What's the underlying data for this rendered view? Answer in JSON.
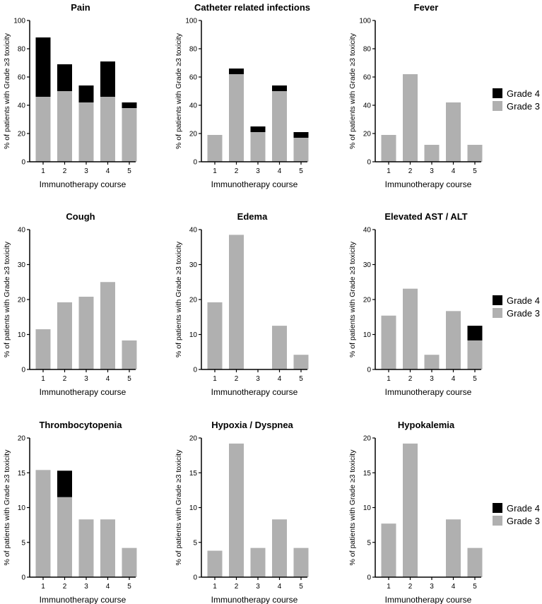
{
  "colors": {
    "grade3": "#b0b0b0",
    "grade4": "#000000",
    "axis": "#000000"
  },
  "legend": {
    "grade4_label": "Grade 4",
    "grade3_label": "Grade 3"
  },
  "chart_data": [
    {
      "type": "bar",
      "title": "Pain",
      "xlabel": "Immunotherapy course",
      "ylabel": "% of patients with Grade ≥3 toxicity",
      "categories": [
        "1",
        "2",
        "3",
        "4",
        "5"
      ],
      "ylim": [
        0,
        100
      ],
      "yticks": [
        0,
        20,
        40,
        60,
        80,
        100
      ],
      "stacked": true,
      "series": [
        {
          "name": "Grade 3",
          "values": [
            46,
            50,
            42,
            46,
            38
          ]
        },
        {
          "name": "Grade 4",
          "values": [
            42,
            19,
            12,
            25,
            4
          ]
        }
      ]
    },
    {
      "type": "bar",
      "title": "Catheter related infections",
      "xlabel": "Immunotherapy course",
      "ylabel": "% of patients with Grade ≥3 toxicity",
      "categories": [
        "1",
        "2",
        "3",
        "4",
        "5"
      ],
      "ylim": [
        0,
        100
      ],
      "yticks": [
        0,
        20,
        40,
        60,
        80,
        100
      ],
      "stacked": true,
      "series": [
        {
          "name": "Grade 3",
          "values": [
            19,
            62,
            21,
            50,
            17
          ]
        },
        {
          "name": "Grade 4",
          "values": [
            0,
            4,
            4,
            4,
            4
          ]
        }
      ]
    },
    {
      "type": "bar",
      "title": "Fever",
      "xlabel": "Immunotherapy course",
      "ylabel": "% of patients with Grade ≥3 toxicity",
      "categories": [
        "1",
        "2",
        "3",
        "4",
        "5"
      ],
      "ylim": [
        0,
        100
      ],
      "yticks": [
        0,
        20,
        40,
        60,
        80,
        100
      ],
      "stacked": true,
      "series": [
        {
          "name": "Grade 3",
          "values": [
            19,
            62,
            12,
            42,
            12
          ]
        },
        {
          "name": "Grade 4",
          "values": [
            0,
            0,
            0,
            0,
            0
          ]
        }
      ]
    },
    {
      "type": "bar",
      "title": "Cough",
      "xlabel": "Immunotherapy course",
      "ylabel": "% of patients with Grade ≥3 toxicity",
      "categories": [
        "1",
        "2",
        "3",
        "4",
        "5"
      ],
      "ylim": [
        0,
        40
      ],
      "yticks": [
        0,
        10,
        20,
        30,
        40
      ],
      "stacked": true,
      "series": [
        {
          "name": "Grade 3",
          "values": [
            11.5,
            19.2,
            20.8,
            25,
            8.3
          ]
        },
        {
          "name": "Grade 4",
          "values": [
            0,
            0,
            0,
            0,
            0
          ]
        }
      ]
    },
    {
      "type": "bar",
      "title": "Edema",
      "xlabel": "Immunotherapy course",
      "ylabel": "% of patients with Grade ≥3 toxicity",
      "categories": [
        "1",
        "2",
        "3",
        "4",
        "5"
      ],
      "ylim": [
        0,
        40
      ],
      "yticks": [
        0,
        10,
        20,
        30,
        40
      ],
      "stacked": true,
      "series": [
        {
          "name": "Grade 3",
          "values": [
            19.2,
            38.5,
            0,
            12.5,
            4.2
          ]
        },
        {
          "name": "Grade 4",
          "values": [
            0,
            0,
            0,
            0,
            0
          ]
        }
      ]
    },
    {
      "type": "bar",
      "title": "Elevated AST / ALT",
      "xlabel": "Immunotherapy course",
      "ylabel": "% of patients with Grade ≥3 toxicity",
      "categories": [
        "1",
        "2",
        "3",
        "4",
        "5"
      ],
      "ylim": [
        0,
        40
      ],
      "yticks": [
        0,
        10,
        20,
        30,
        40
      ],
      "stacked": true,
      "series": [
        {
          "name": "Grade 3",
          "values": [
            15.4,
            23.1,
            4.2,
            16.7,
            8.3
          ]
        },
        {
          "name": "Grade 4",
          "values": [
            0,
            0,
            0,
            0,
            4.2
          ]
        }
      ]
    },
    {
      "type": "bar",
      "title": "Thrombocytopenia",
      "xlabel": "Immunotherapy course",
      "ylabel": "% of patients with Grade ≥3 toxicity",
      "categories": [
        "1",
        "2",
        "3",
        "4",
        "5"
      ],
      "ylim": [
        0,
        20
      ],
      "yticks": [
        0,
        5,
        10,
        15,
        20
      ],
      "stacked": true,
      "series": [
        {
          "name": "Grade 3",
          "values": [
            15.4,
            11.5,
            8.3,
            8.3,
            4.2
          ]
        },
        {
          "name": "Grade 4",
          "values": [
            0,
            3.8,
            0,
            0,
            0
          ]
        }
      ]
    },
    {
      "type": "bar",
      "title": "Hypoxia / Dyspnea",
      "xlabel": "Immunotherapy course",
      "ylabel": "% of patients with Grade ≥3 toxicity",
      "categories": [
        "1",
        "2",
        "3",
        "4",
        "5"
      ],
      "ylim": [
        0,
        20
      ],
      "yticks": [
        0,
        5,
        10,
        15,
        20
      ],
      "stacked": true,
      "series": [
        {
          "name": "Grade 3",
          "values": [
            3.8,
            19.2,
            4.2,
            8.3,
            4.2
          ]
        },
        {
          "name": "Grade 4",
          "values": [
            0,
            0,
            0,
            0,
            0
          ]
        }
      ]
    },
    {
      "type": "bar",
      "title": "Hypokalemia",
      "xlabel": "Immunotherapy course",
      "ylabel": "% of patients with Grade ≥3 toxicity",
      "categories": [
        "1",
        "2",
        "3",
        "4",
        "5"
      ],
      "ylim": [
        0,
        20
      ],
      "yticks": [
        0,
        5,
        10,
        15,
        20
      ],
      "stacked": true,
      "series": [
        {
          "name": "Grade 3",
          "values": [
            7.7,
            19.2,
            0,
            8.3,
            4.2
          ]
        },
        {
          "name": "Grade 4",
          "values": [
            0,
            0,
            0,
            0,
            0
          ]
        }
      ]
    }
  ]
}
